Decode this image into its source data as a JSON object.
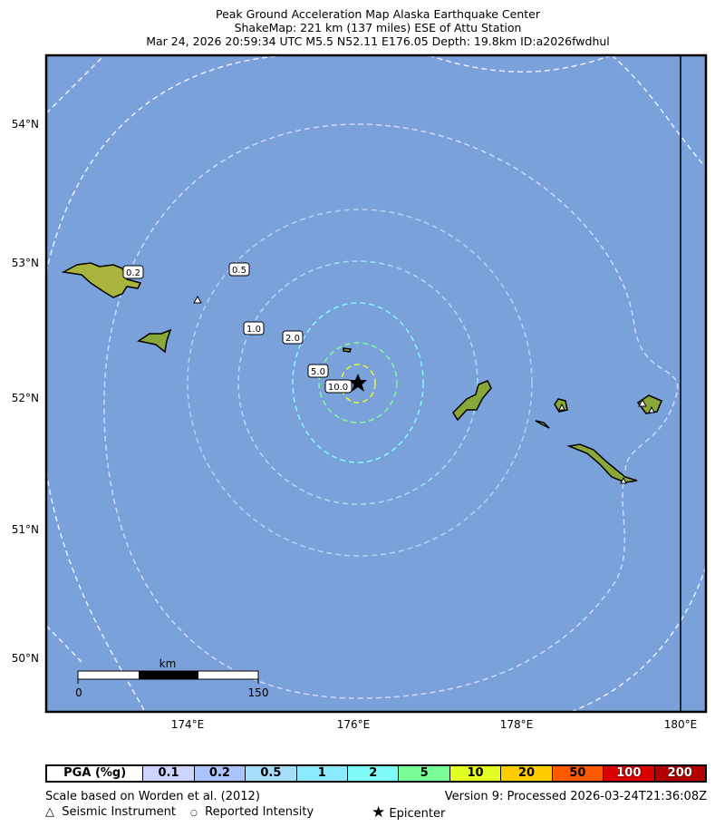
{
  "title": {
    "line1": "Peak Ground Acceleration Map Alaska Earthquake Center",
    "line2": "ShakeMap: 221 km (137 miles) ESE of Attu Station",
    "line3": "Mar 24, 2026 20:59:34 UTC M5.5 N52.11 E176.05 Depth: 19.8km ID:a2026fwdhul"
  },
  "map": {
    "ocean_color": "#7ba1db",
    "lat_ticks": [
      "54°N",
      "53°N",
      "52°N",
      "51°N",
      "50°N"
    ],
    "lon_ticks": [
      "174°E",
      "176°E",
      "178°E",
      "180°E"
    ],
    "contour_labels": [
      "0.2",
      "0.5",
      "1.0",
      "2.0",
      "5.0",
      "10.0"
    ],
    "scalebar": {
      "unit": "km",
      "start": "0",
      "end": "150"
    }
  },
  "legend": {
    "header": "PGA (%g)",
    "bins": [
      {
        "label": "0.1",
        "color": "#ccd5ff"
      },
      {
        "label": "0.2",
        "color": "#aac4ff"
      },
      {
        "label": "0.5",
        "color": "#a6dffa"
      },
      {
        "label": "1",
        "color": "#8ceaff"
      },
      {
        "label": "2",
        "color": "#7ffbf9"
      },
      {
        "label": "5",
        "color": "#7afd97"
      },
      {
        "label": "10",
        "color": "#e3fe23"
      },
      {
        "label": "20",
        "color": "#ffcc00"
      },
      {
        "label": "50",
        "color": "#ff5a00"
      },
      {
        "label": "100",
        "color": "#dd0000"
      },
      {
        "label": "200",
        "color": "#b40000"
      }
    ]
  },
  "footer": {
    "scale_note": "Scale based on Worden et al. (2012)",
    "version": "Version 9: Processed 2026-03-24T21:36:08Z",
    "seismic": "Seismic Instrument",
    "reported": "Reported Intensity",
    "epicenter": "Epicenter"
  }
}
